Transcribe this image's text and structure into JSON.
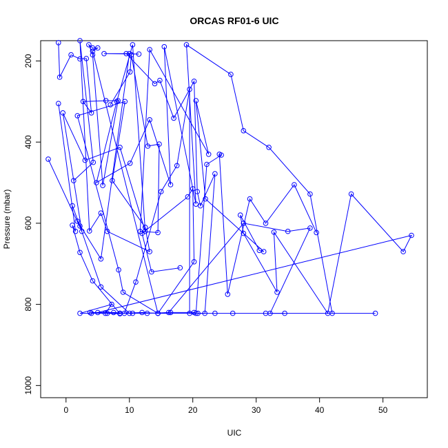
{
  "chart_data": {
    "type": "scatter",
    "title": "ORCAS RF01-6 UIC",
    "xlabel": "UIC",
    "ylabel": "Pressure (mbar)",
    "xlim": [
      -4,
      57
    ],
    "ylim": [
      1030,
      150
    ],
    "y_reversed": true,
    "x_ticks": [
      0,
      10,
      20,
      30,
      40,
      50
    ],
    "y_ticks": [
      200,
      400,
      600,
      800,
      1000
    ],
    "grid": false,
    "legend": "none",
    "colors": {
      "series": "#0000ff",
      "text": "#000000",
      "frame": "#000000"
    },
    "marker": "open-circle",
    "series": [
      {
        "values": [
          [
            -2.8,
            442
          ],
          [
            2.5,
            620
          ],
          [
            -0.5,
            328
          ],
          [
            3,
            445
          ],
          [
            8.5,
            413
          ],
          [
            12.5,
            620
          ],
          [
            10.5,
            160
          ],
          [
            8,
            300
          ],
          [
            4.8,
            500
          ],
          [
            10.1,
            452
          ],
          [
            13.2,
            345
          ],
          [
            16.5,
            505
          ],
          [
            15.5,
            165
          ],
          [
            20.5,
            553
          ],
          [
            19,
            160
          ],
          [
            26,
            233
          ],
          [
            28,
            372
          ],
          [
            32,
            413
          ],
          [
            38.5,
            528
          ],
          [
            42,
            822
          ]
        ]
      },
      {
        "values": [
          [
            1,
            557
          ],
          [
            2.2,
            607
          ],
          [
            5.5,
            757
          ],
          [
            10,
            822
          ],
          [
            7.5,
            820
          ],
          [
            3.8,
            820
          ],
          [
            8.5,
            822
          ],
          [
            12,
            820
          ],
          [
            14.5,
            822
          ],
          [
            23.5,
            822
          ],
          [
            31.5,
            822
          ],
          [
            26.3,
            822
          ],
          [
            48.8,
            822
          ]
        ]
      },
      {
        "values": [
          [
            1.2,
            495
          ],
          [
            4.3,
            450
          ],
          [
            2.2,
            150
          ],
          [
            3.7,
            619
          ],
          [
            5.5,
            575
          ],
          [
            6.5,
            620
          ],
          [
            13.2,
            670
          ],
          [
            12.5,
            610
          ],
          [
            7.3,
            495
          ],
          [
            9.3,
            300
          ],
          [
            1.8,
            335
          ],
          [
            8.3,
            715
          ],
          [
            9,
            770
          ],
          [
            14.5,
            822
          ],
          [
            20.2,
            695
          ],
          [
            20,
            515
          ],
          [
            19.2,
            535
          ],
          [
            12,
            625
          ],
          [
            13.5,
            720
          ],
          [
            18,
            710
          ]
        ]
      },
      {
        "values": [
          [
            7,
            308
          ],
          [
            10.1,
            227
          ],
          [
            10.3,
            185
          ],
          [
            12.9,
            410
          ],
          [
            14.7,
            405
          ],
          [
            14.5,
            623
          ],
          [
            11.7,
            620
          ],
          [
            13.2,
            172
          ],
          [
            22.5,
            430
          ],
          [
            20.5,
            298
          ],
          [
            22,
            540
          ],
          [
            31.2,
            670
          ],
          [
            30.5,
            667
          ],
          [
            27.5,
            580
          ],
          [
            28,
            625
          ],
          [
            33.3,
            770
          ],
          [
            32.8,
            622
          ],
          [
            41.3,
            822
          ],
          [
            45,
            528
          ],
          [
            53.2,
            670
          ],
          [
            54.5,
            630
          ],
          [
            5,
            820
          ]
        ]
      },
      {
        "values": [
          [
            -1.2,
            305
          ],
          [
            1.5,
            620
          ],
          [
            1,
            605
          ],
          [
            2.2,
            672
          ],
          [
            4.2,
            742
          ],
          [
            8.5,
            823
          ],
          [
            6.5,
            822
          ],
          [
            9.2,
            822
          ],
          [
            11,
            745
          ],
          [
            15,
            522
          ],
          [
            17.5,
            458
          ],
          [
            19.5,
            270
          ],
          [
            19.5,
            822
          ],
          [
            20.5,
            822
          ],
          [
            22.2,
            455
          ],
          [
            24.5,
            432
          ],
          [
            24.2,
            430
          ],
          [
            25.5,
            775
          ],
          [
            29,
            540
          ],
          [
            31.5,
            600
          ],
          [
            36,
            505
          ],
          [
            39.5,
            623
          ]
        ]
      },
      {
        "values": [
          [
            1.8,
            595
          ],
          [
            5.5,
            688
          ],
          [
            10,
            182
          ],
          [
            6,
            182
          ],
          [
            11.5,
            183
          ],
          [
            9.5,
            182
          ],
          [
            14,
            256
          ],
          [
            14.8,
            248
          ],
          [
            17,
            341
          ],
          [
            20.2,
            250
          ],
          [
            20.7,
            522
          ],
          [
            21.2,
            557
          ],
          [
            23.5,
            478
          ],
          [
            21.9,
            822
          ],
          [
            20.8,
            822
          ],
          [
            20.2,
            820
          ],
          [
            16.5,
            820
          ],
          [
            12.8,
            822
          ],
          [
            10.5,
            822
          ],
          [
            8.5,
            822
          ],
          [
            4,
            822
          ],
          [
            2.2,
            822
          ],
          [
            7.2,
            800
          ],
          [
            6.2,
            822
          ]
        ]
      },
      {
        "values": [
          [
            -1.2,
            155
          ],
          [
            -1,
            240
          ],
          [
            0.8,
            185
          ],
          [
            2.2,
            195
          ],
          [
            3.2,
            194
          ],
          [
            4,
            328
          ],
          [
            2.7,
            300
          ],
          [
            6.3,
            298
          ],
          [
            8.2,
            298
          ],
          [
            5.8,
            507
          ],
          [
            4.2,
            185
          ],
          [
            3.6,
            160
          ],
          [
            4.2,
            168
          ],
          [
            5,
            168
          ],
          [
            4.2,
            176
          ],
          [
            14.5,
            822
          ],
          [
            16.2,
            820
          ],
          [
            28,
            600
          ],
          [
            35,
            620
          ],
          [
            38.5,
            612
          ],
          [
            32.2,
            822
          ],
          [
            34.5,
            822
          ]
        ]
      }
    ]
  }
}
